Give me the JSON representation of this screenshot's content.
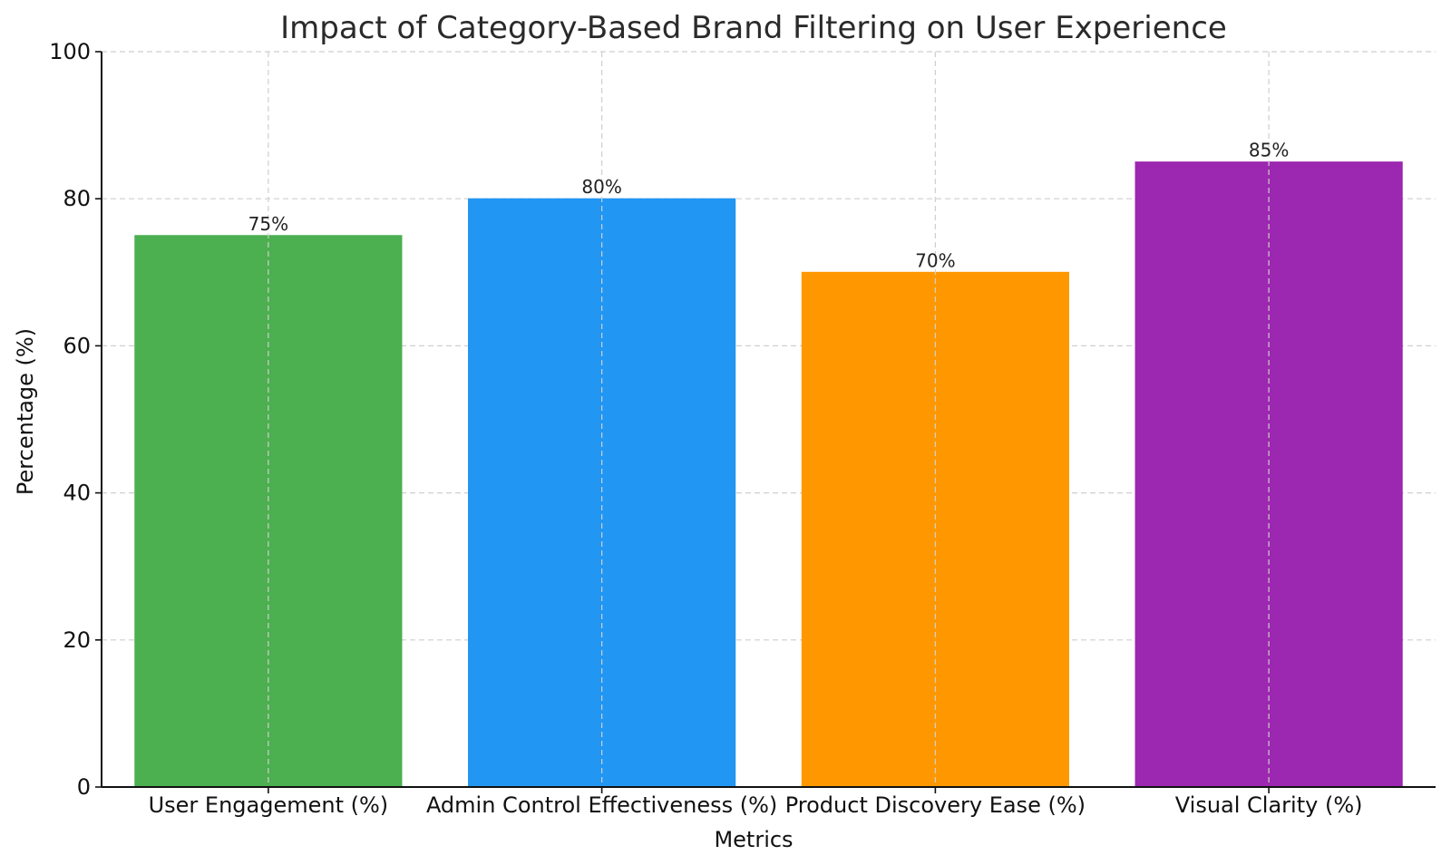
{
  "chart_data": {
    "type": "bar",
    "title": "Impact of Category-Based Brand Filtering on User Experience",
    "xlabel": "Metrics",
    "ylabel": "Percentage (%)",
    "categories": [
      "User Engagement (%)",
      "Admin Control Effectiveness (%)",
      "Product Discovery Ease (%)",
      "Visual Clarity (%)"
    ],
    "values": [
      75,
      80,
      70,
      85
    ],
    "data_labels": [
      "75%",
      "80%",
      "70%",
      "85%"
    ],
    "colors": [
      "#4caf50",
      "#2196f3",
      "#ff9800",
      "#9c27b0"
    ],
    "ylim": [
      0,
      100
    ],
    "yticks": [
      0,
      20,
      40,
      60,
      80,
      100
    ],
    "ytick_labels": [
      "0",
      "20",
      "40",
      "60",
      "80",
      "100"
    ],
    "grid": true
  }
}
